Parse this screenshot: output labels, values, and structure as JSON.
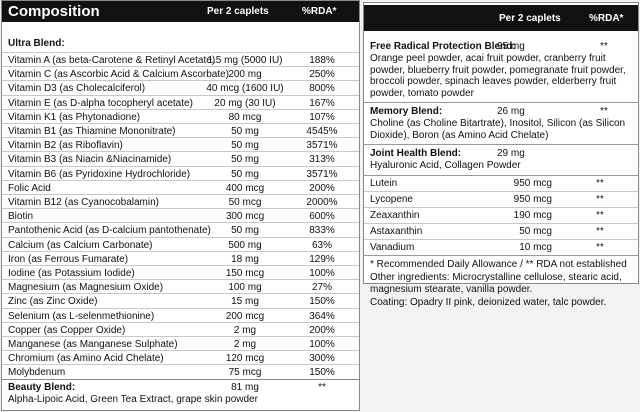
{
  "left": {
    "header": {
      "title": "Composition",
      "amount": "Per 2 caplets",
      "rda": "%RDA*"
    },
    "ultra_blend": {
      "title": "Ultra Blend:",
      "rows": [
        [
          "Vitamin A (as beta-Carotene & Retinyl Acetate)",
          "1.5 mg (5000 IU)",
          "188%"
        ],
        [
          "Vitamin C (as Ascorbic Acid & Calcium Ascorbate)",
          "200 mg",
          "250%"
        ],
        [
          "Vitamin D3 (as Cholecalciferol)",
          "40 mcg (1600 IU)",
          "800%"
        ],
        [
          "Vitamin E (as D-alpha tocopheryl acetate)",
          "20 mg (30 IU)",
          "167%"
        ],
        [
          "Vitamin K1 (as Phytonadione)",
          "80 mcg",
          "107%"
        ],
        [
          "Vitamin B1 (as Thiamine Mononitrate)",
          "50 mg",
          "4545%"
        ],
        [
          "Vitamin B2 (as Riboflavin)",
          "50 mg",
          "3571%"
        ],
        [
          "Vitamin B3 (as Niacin &Niacinamide)",
          "50 mg",
          "313%"
        ],
        [
          "Vitamin B6 (as Pyridoxine Hydrochloride)",
          "50 mg",
          "3571%"
        ],
        [
          "Folic Acid",
          "400 mcg",
          "200%"
        ],
        [
          "Vitamin B12 (as Cyanocobalamin)",
          "50 mcg",
          "2000%"
        ],
        [
          "Biotin",
          "300 mcg",
          "600%"
        ],
        [
          "Pantothenic Acid (as D-calcium pantothenate)",
          "50 mg",
          "833%"
        ],
        [
          "Calcium (as Calcium Carbonate)",
          "500 mg",
          "63%"
        ],
        [
          "Iron (as Ferrous Fumarate)",
          "18 mg",
          "129%"
        ],
        [
          "Iodine (as Potassium Iodide)",
          "150 mcg",
          "100%"
        ],
        [
          "Magnesium (as Magnesium Oxide)",
          "100 mg",
          "27%"
        ],
        [
          "Zinc (as Zinc Oxide)",
          "15 mg",
          "150%"
        ],
        [
          "Selenium (as L-selenmethionine)",
          "200 mcg",
          "364%"
        ],
        [
          "Copper (as Copper Oxide)",
          "2 mg",
          "200%"
        ],
        [
          "Manganese (as Manganese Sulphate)",
          "2 mg",
          "100%"
        ],
        [
          "Chromium (as Amino Acid Chelate)",
          "120 mcg",
          "300%"
        ],
        [
          "Molybdenum",
          "75 mcg",
          "150%"
        ]
      ]
    },
    "beauty_blend": {
      "title": "Beauty Blend:",
      "amount": "81 mg",
      "rda": "**",
      "ingredients": "Alpha-Lipoic Acid, Green Tea Extract, grape skin powder"
    }
  },
  "right": {
    "header": {
      "amount": "Per 2 caplets",
      "rda": "%RDA*"
    },
    "blends": [
      {
        "title": "Free Radical Protection Blend:",
        "amount": "95 mg",
        "rda": "**",
        "ingredients": "Orange peel powder, acai fruit powder, cranberry fruit powder, blueberry fruit powder, pomegranate fruit powder, broccoli powder, spinach leaves powder, elderberry fruit powder, tomato powder"
      },
      {
        "title": "Memory Blend:",
        "amount": "26 mg",
        "rda": "**",
        "ingredients": "Choline (as Choline Bitartrate), Inositol, Silicon (as Silicon Dioxide), Boron (as Amino Acid Chelate)"
      },
      {
        "title": "Joint Health Blend:",
        "amount": "29 mg",
        "ingredients": "Hyaluronic Acid, Collagen Powder"
      }
    ],
    "rows": [
      [
        "Lutein",
        "950 mcg",
        "**"
      ],
      [
        "Lycopene",
        "950 mcg",
        "**"
      ],
      [
        "Zeaxanthin",
        "190 mcg",
        "**"
      ],
      [
        "Astaxanthin",
        "50 mcg",
        "**"
      ],
      [
        "Vanadium",
        "10 mcg",
        "**"
      ]
    ],
    "footnotes": [
      "* Recommended Daily Allowance / ** RDA not established",
      "Other ingredients: Microcrystalline cellulose, stearic acid, magnesium stearate, vanilla powder.",
      "Coating: Opadry II pink, deionized water, talc powder."
    ]
  }
}
